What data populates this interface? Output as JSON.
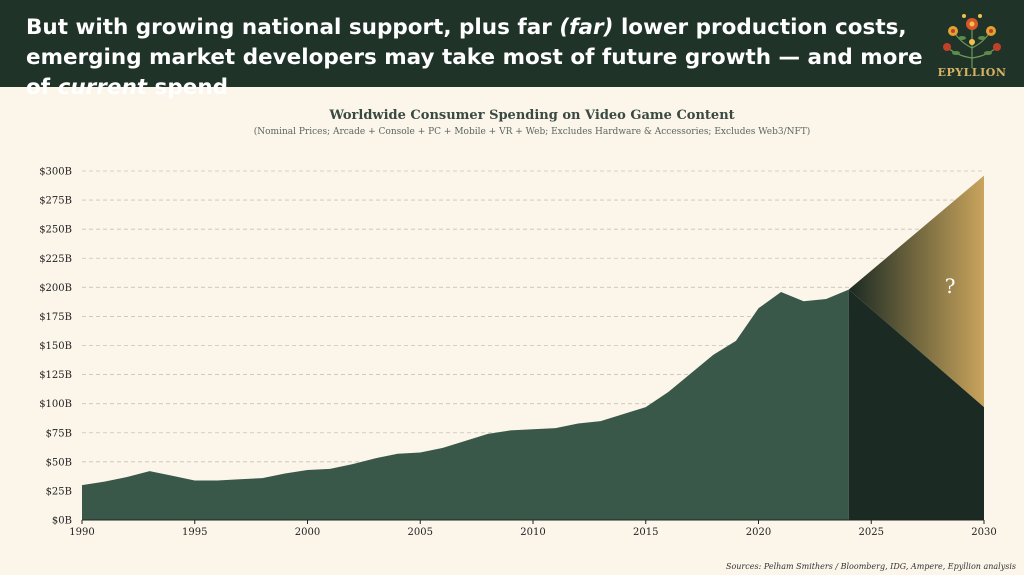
{
  "header": {
    "headline_parts": [
      {
        "text": "But with growing national support, plus far ",
        "italic": false
      },
      {
        "text": "(far)",
        "italic": true
      },
      {
        "text": " lower production costs, emerging market developers may take most of future growth — and more of ",
        "italic": false
      },
      {
        "text": "current",
        "italic": true
      },
      {
        "text": " spend",
        "italic": false
      }
    ],
    "logo_text": "EPYLLION"
  },
  "colors": {
    "header_bg": "#1f3329",
    "background": "#fbf5ea",
    "area_fill": "#3a5849",
    "projection_dark": "#1b2a22",
    "projection_gold": "#c9a45c",
    "logo_gold": "#d8b364"
  },
  "chart_data": {
    "type": "area",
    "title": "Worldwide Consumer Spending on Video Game Content",
    "subtitle": "(Nominal Prices; Arcade + Console + PC + Mobile + VR + Web; Excludes Hardware & Accessories; Excludes Web3/NFT)",
    "x": [
      1990,
      1991,
      1992,
      1993,
      1994,
      1995,
      1996,
      1997,
      1998,
      1999,
      2000,
      2001,
      2002,
      2003,
      2004,
      2005,
      2006,
      2007,
      2008,
      2009,
      2010,
      2011,
      2012,
      2013,
      2014,
      2015,
      2016,
      2017,
      2018,
      2019,
      2020,
      2021,
      2022,
      2023,
      2024
    ],
    "values": [
      30,
      33,
      37,
      42,
      38,
      34,
      34,
      35,
      36,
      40,
      43,
      44,
      48,
      53,
      57,
      58,
      62,
      68,
      74,
      77,
      78,
      79,
      83,
      85,
      91,
      97,
      110,
      126,
      142,
      154,
      182,
      196,
      188,
      190,
      198
    ],
    "projection": {
      "start_year": 2024,
      "end_year": 2030,
      "start_value": 198,
      "upper_end": 296,
      "lower_end": 97,
      "label": "?"
    },
    "xlim": [
      1990,
      2030
    ],
    "ylim": [
      0,
      300
    ],
    "x_ticks": [
      "1990",
      "1995",
      "2000",
      "2005",
      "2010",
      "2015",
      "2020",
      "2025",
      "2030"
    ],
    "y_ticks": [
      "$0B",
      "$25B",
      "$50B",
      "$75B",
      "$100B",
      "$125B",
      "$150B",
      "$175B",
      "$200B",
      "$225B",
      "$250B",
      "$275B",
      "$300B"
    ],
    "grid": true
  },
  "source": "Sources: Pelham Smithers / Bloomberg, IDG, Ampere, Epyllion analysis"
}
